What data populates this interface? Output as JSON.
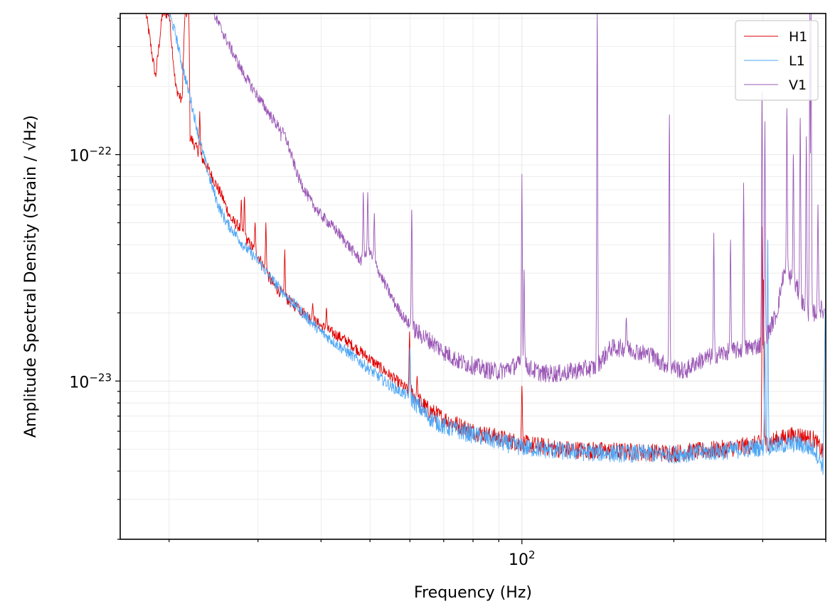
{
  "chart_data": {
    "type": "line",
    "xlabel": "Frequency (Hz)",
    "ylabel": "Amplitude Spectral Density (Strain / √Hz)",
    "xscale": "log",
    "yscale": "log",
    "xlim": [
      16,
      400
    ],
    "ylim": [
      2e-24,
      4.2e-22
    ],
    "grid": true,
    "legend_position": "top-right",
    "x_ticks": [
      {
        "value": 100,
        "base": "10",
        "exp": "2"
      }
    ],
    "y_ticks": [
      {
        "value": 1e-23,
        "base": "10",
        "exp": "−23"
      },
      {
        "value": 1e-22,
        "base": "10",
        "exp": "−22"
      }
    ],
    "series": [
      {
        "name": "H1",
        "color": "#e00000",
        "points": [
          [
            18,
            4.2e-22
          ],
          [
            18.8,
            2.2e-22
          ],
          [
            19.4,
            4.2e-22
          ],
          [
            20,
            4.2e-22
          ],
          [
            20.6,
            2e-22
          ],
          [
            21.2,
            1.7e-22
          ],
          [
            21.5,
            4.2e-22
          ],
          [
            21.9,
            4.2e-22
          ],
          [
            22,
            1.2e-22
          ],
          [
            24,
            8.5e-23
          ],
          [
            25.5,
            6.5e-23
          ],
          [
            26.5,
            5.2e-23
          ],
          [
            27.5,
            4.8e-23
          ],
          [
            28.5,
            4.2e-23
          ],
          [
            30,
            3.6e-23
          ],
          [
            31,
            3.1e-23
          ],
          [
            32,
            2.7e-23
          ],
          [
            33,
            2.5e-23
          ],
          [
            35,
            2.2e-23
          ],
          [
            37,
            2e-23
          ],
          [
            40,
            1.75e-23
          ],
          [
            45,
            1.5e-23
          ],
          [
            50,
            1.25e-23
          ],
          [
            55,
            1.05e-23
          ],
          [
            60,
            9e-24
          ],
          [
            65,
            7.5e-24
          ],
          [
            70,
            6.8e-24
          ],
          [
            80,
            6e-24
          ],
          [
            90,
            5.6e-24
          ],
          [
            100,
            5.3e-24
          ],
          [
            120,
            5e-24
          ],
          [
            150,
            4.9e-24
          ],
          [
            200,
            4.8e-24
          ],
          [
            250,
            5e-24
          ],
          [
            300,
            5.3e-24
          ],
          [
            350,
            5.8e-24
          ],
          [
            380,
            5.5e-24
          ],
          [
            395,
            4.8e-24
          ]
        ],
        "peaks": [
          [
            23,
            1.55e-22
          ],
          [
            27.8,
            6.3e-23
          ],
          [
            28.2,
            6.5e-23
          ],
          [
            29.6,
            5e-23
          ],
          [
            31.1,
            5e-23
          ],
          [
            33.9,
            3.8e-23
          ],
          [
            36,
            2.2e-23
          ],
          [
            38.5,
            2.2e-23
          ],
          [
            41,
            2.1e-23
          ],
          [
            59.9,
            1.65e-23
          ],
          [
            62,
            1.05e-23
          ],
          [
            100,
            9.5e-24
          ],
          [
            299.5,
            4.8e-23
          ],
          [
            301,
            2.8e-23
          ]
        ]
      },
      {
        "name": "L1",
        "color": "#4da6f5",
        "points": [
          [
            20,
            4.2e-22
          ],
          [
            20.6,
            3.4e-22
          ],
          [
            21.2,
            2.5e-22
          ],
          [
            22,
            1.8e-22
          ],
          [
            23,
            1.15e-22
          ],
          [
            24,
            8e-23
          ],
          [
            25,
            6e-23
          ],
          [
            26,
            5e-23
          ],
          [
            27,
            4.5e-23
          ],
          [
            28,
            4e-23
          ],
          [
            30,
            3.4e-23
          ],
          [
            32,
            2.8e-23
          ],
          [
            34,
            2.4e-23
          ],
          [
            36,
            2.1e-23
          ],
          [
            38,
            1.85e-23
          ],
          [
            40,
            1.65e-23
          ],
          [
            43,
            1.45e-23
          ],
          [
            46,
            1.3e-23
          ],
          [
            50,
            1.12e-23
          ],
          [
            55,
            9.5e-24
          ],
          [
            60,
            8.5e-24
          ],
          [
            65,
            7e-24
          ],
          [
            70,
            6.3e-24
          ],
          [
            80,
            5.8e-24
          ],
          [
            90,
            5.4e-24
          ],
          [
            100,
            5.1e-24
          ],
          [
            120,
            4.9e-24
          ],
          [
            150,
            4.8e-24
          ],
          [
            200,
            4.75e-24
          ],
          [
            250,
            4.9e-24
          ],
          [
            300,
            5.1e-24
          ],
          [
            350,
            5.3e-24
          ],
          [
            380,
            5e-24
          ],
          [
            395,
            4.2e-24
          ]
        ],
        "peaks": [
          [
            60,
            1.4e-23
          ],
          [
            307,
            4.2e-23
          ],
          [
            303,
            1.5e-23
          ],
          [
            399,
            2.1e-23
          ]
        ]
      },
      {
        "name": "V1",
        "color": "#9b59b6",
        "points": [
          [
            24.5,
            4.2e-22
          ],
          [
            26,
            3.2e-22
          ],
          [
            28,
            2.3e-22
          ],
          [
            30,
            1.8e-22
          ],
          [
            32,
            1.45e-22
          ],
          [
            34,
            1.2e-22
          ],
          [
            36,
            8e-23
          ],
          [
            38,
            6.3e-23
          ],
          [
            40,
            5.4e-23
          ],
          [
            43,
            4.6e-23
          ],
          [
            46,
            3.8e-23
          ],
          [
            48,
            3.4e-23
          ],
          [
            50,
            3.7e-23
          ],
          [
            53,
            2.8e-23
          ],
          [
            56,
            2.2e-23
          ],
          [
            58,
            1.95e-23
          ],
          [
            60,
            1.75e-23
          ],
          [
            63,
            1.6e-23
          ],
          [
            66,
            1.5e-23
          ],
          [
            70,
            1.35e-23
          ],
          [
            75,
            1.22e-23
          ],
          [
            80,
            1.17e-23
          ],
          [
            85,
            1.12e-23
          ],
          [
            90,
            1.1e-23
          ],
          [
            95,
            1.15e-23
          ],
          [
            100,
            1.2e-23
          ],
          [
            105,
            1.12e-23
          ],
          [
            110,
            1.08e-23
          ],
          [
            120,
            1.08e-23
          ],
          [
            130,
            1.12e-23
          ],
          [
            140,
            1.15e-23
          ],
          [
            150,
            1.4e-23
          ],
          [
            160,
            1.4e-23
          ],
          [
            170,
            1.35e-23
          ],
          [
            180,
            1.3e-23
          ],
          [
            190,
            1.2e-23
          ],
          [
            200,
            1.15e-23
          ],
          [
            210,
            1.1e-23
          ],
          [
            220,
            1.2e-23
          ],
          [
            240,
            1.3e-23
          ],
          [
            260,
            1.35e-23
          ],
          [
            280,
            1.4e-23
          ],
          [
            300,
            1.45e-23
          ],
          [
            320,
            2e-23
          ],
          [
            330,
            3e-23
          ],
          [
            340,
            2.9e-23
          ],
          [
            350,
            2.6e-23
          ],
          [
            360,
            2.2e-23
          ],
          [
            370,
            2e-23
          ],
          [
            380,
            2e-23
          ],
          [
            390,
            2.1e-23
          ],
          [
            397,
            2e-23
          ]
        ],
        "peaks": [
          [
            33.3,
            1.15e-22
          ],
          [
            48.5,
            6.8e-23
          ],
          [
            49.5,
            6.8e-23
          ],
          [
            51,
            5.5e-23
          ],
          [
            60.5,
            5.7e-23
          ],
          [
            101,
            3.1e-23
          ],
          [
            100,
            8.2e-23
          ],
          [
            141,
            4.2e-22
          ],
          [
            161,
            1.9e-23
          ],
          [
            180,
            1.4e-23
          ],
          [
            196,
            1.5e-22
          ],
          [
            240,
            4.5e-23
          ],
          [
            259,
            4.2e-23
          ],
          [
            275,
            7.5e-23
          ],
          [
            299,
            1.9e-22
          ],
          [
            303,
            1.4e-22
          ],
          [
            335,
            1.6e-22
          ],
          [
            345,
            1e-22
          ],
          [
            356,
            1.45e-22
          ],
          [
            366,
            1.2e-22
          ],
          [
            372,
            4.2e-22
          ],
          [
            374,
            4.2e-22
          ],
          [
            386,
            6e-23
          ]
        ]
      }
    ]
  }
}
